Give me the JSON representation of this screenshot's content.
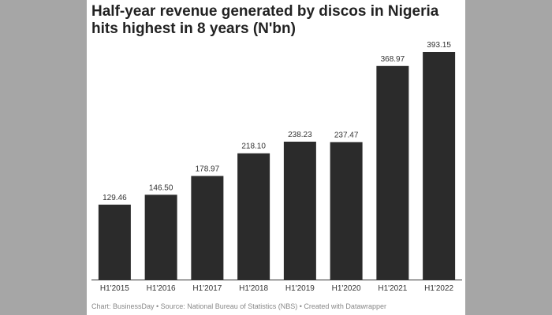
{
  "chart_data": {
    "type": "bar",
    "title": "Half-year revenue generated by discos in Nigeria hits highest in 8 years (N'bn)",
    "categories": [
      "H1'2015",
      "H1'2016",
      "H1'2017",
      "H1'2018",
      "H1'2019",
      "H1'2020",
      "H1'2021",
      "H1'2022"
    ],
    "values": [
      129.46,
      146.5,
      178.97,
      218.1,
      238.23,
      237.47,
      368.97,
      393.15
    ],
    "value_labels": [
      "129.46",
      "146.50",
      "178.97",
      "218.10",
      "238.23",
      "237.47",
      "368.97",
      "393.15"
    ],
    "xlabel": "",
    "ylabel": "",
    "ylim": [
      0,
      400
    ],
    "grid": false,
    "bar_color": "#2b2b2b"
  },
  "footer": {
    "credit": "Chart: BusinessDay • Source: National Bureau of Statistics (NBS) • Created with Datawrapper"
  }
}
